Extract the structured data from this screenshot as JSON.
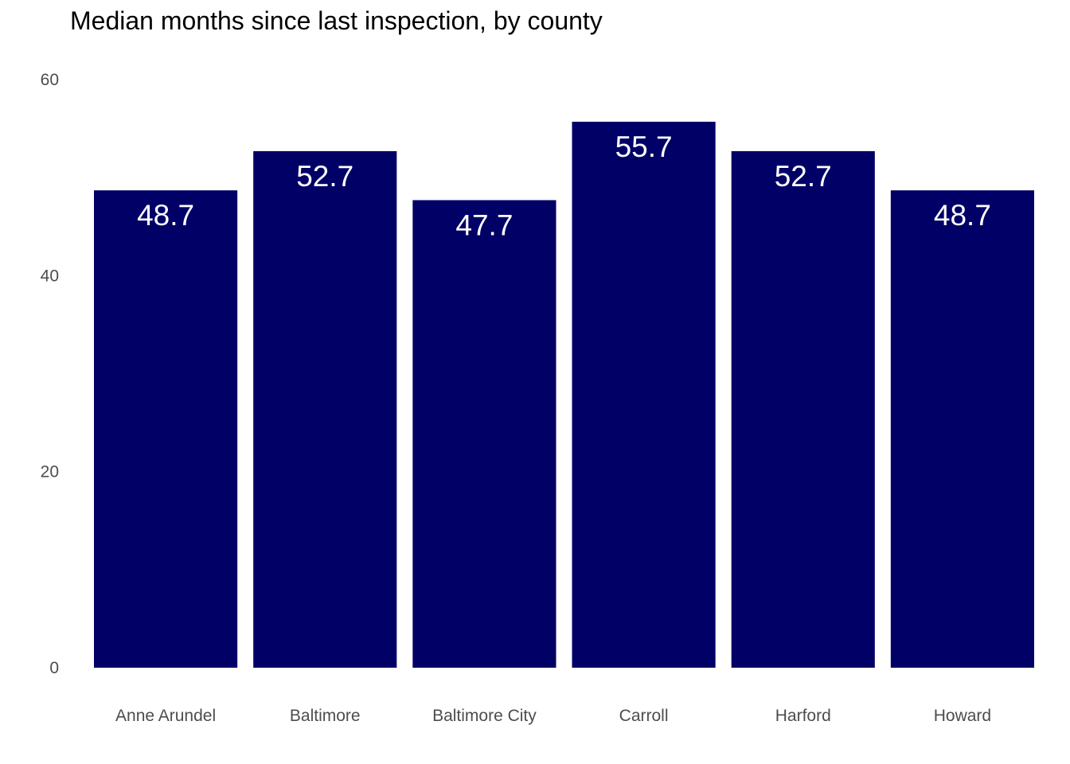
{
  "chart_data": {
    "type": "bar",
    "title": "Median months since last inspection, by county",
    "xlabel": "",
    "ylabel": "",
    "categories": [
      "Anne Arundel",
      "Baltimore",
      "Baltimore City",
      "Carroll",
      "Harford",
      "Howard"
    ],
    "values": [
      48.7,
      52.7,
      47.7,
      55.7,
      52.7,
      48.7
    ],
    "data_labels": [
      "48.7",
      "52.7",
      "47.7",
      "55.7",
      "52.7",
      "48.7"
    ],
    "ylim": [
      0,
      60
    ],
    "yticks": [
      0,
      20,
      40,
      60
    ],
    "ytick_labels": [
      "0",
      "20",
      "40",
      "60"
    ],
    "grid": false,
    "legend": "none",
    "bar_color": "#000066",
    "label_color": "#ffffff",
    "tick_color": "#4d4d4d"
  }
}
